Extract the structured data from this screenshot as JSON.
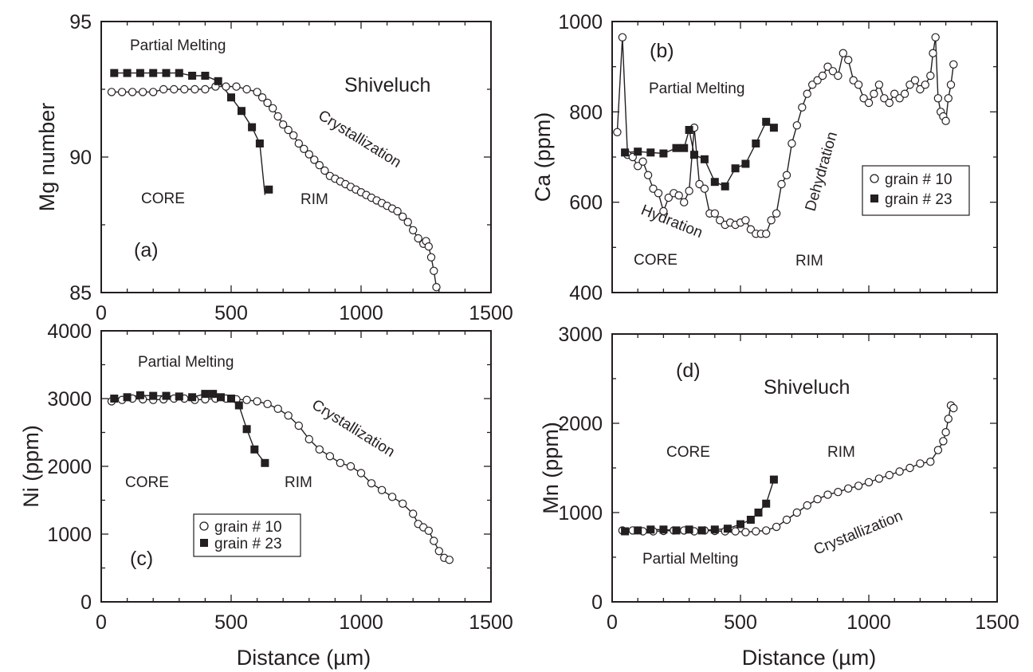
{
  "figure": {
    "xlabel": "Distance  (µm)",
    "legend": {
      "grain10": "grain # 10",
      "grain23": "grain # 23"
    }
  },
  "chart_data": [
    {
      "id": "a",
      "type": "scatter",
      "panel_label": "(a)",
      "ylabel": "Mg number",
      "xlim": [
        0,
        1500
      ],
      "ylim": [
        85,
        95
      ],
      "xticks": [
        0,
        500,
        1000,
        1500
      ],
      "yticks": [
        85,
        90,
        95
      ],
      "grid": false,
      "legend": "none",
      "annotations": [
        "Partial Melting",
        "Shiveluch",
        "Crystallization",
        "CORE",
        "RIM"
      ],
      "series": [
        {
          "name": "grain # 10",
          "marker": "open-circle",
          "x": [
            40,
            80,
            120,
            160,
            200,
            240,
            280,
            320,
            360,
            400,
            440,
            480,
            520,
            560,
            600,
            620,
            640,
            660,
            680,
            700,
            720,
            740,
            760,
            780,
            800,
            820,
            840,
            860,
            880,
            900,
            920,
            940,
            960,
            980,
            1000,
            1020,
            1040,
            1060,
            1080,
            1100,
            1120,
            1140,
            1160,
            1180,
            1200,
            1220,
            1240,
            1250,
            1260,
            1270,
            1280,
            1290
          ],
          "y": [
            92.4,
            92.4,
            92.4,
            92.4,
            92.4,
            92.5,
            92.5,
            92.5,
            92.5,
            92.5,
            92.6,
            92.6,
            92.6,
            92.5,
            92.4,
            92.2,
            92.0,
            91.8,
            91.5,
            91.2,
            91.0,
            90.8,
            90.5,
            90.3,
            90.1,
            89.9,
            89.7,
            89.5,
            89.3,
            89.2,
            89.1,
            89.0,
            88.9,
            88.8,
            88.7,
            88.6,
            88.5,
            88.4,
            88.3,
            88.2,
            88.1,
            88.0,
            87.8,
            87.6,
            87.3,
            87.0,
            86.8,
            86.9,
            86.7,
            86.3,
            85.8,
            85.2
          ]
        },
        {
          "name": "grain # 23",
          "marker": "filled-square",
          "x": [
            50,
            100,
            150,
            200,
            250,
            300,
            350,
            400,
            450,
            500,
            540,
            580,
            610,
            645
          ],
          "y": [
            93.1,
            93.1,
            93.1,
            93.1,
            93.1,
            93.1,
            93.0,
            93.0,
            92.8,
            92.2,
            91.7,
            91.1,
            90.5,
            88.8
          ],
          "line_x": [
            50,
            100,
            150,
            200,
            250,
            300,
            350,
            400,
            450,
            500,
            540,
            580,
            610,
            630
          ],
          "line_y": [
            93.1,
            93.1,
            93.1,
            93.1,
            93.1,
            93.1,
            93.0,
            93.0,
            92.8,
            92.2,
            91.7,
            91.1,
            90.5,
            88.6
          ]
        }
      ]
    },
    {
      "id": "b",
      "type": "line",
      "panel_label": "(b)",
      "ylabel": "Ca (ppm)",
      "xlim": [
        0,
        1500
      ],
      "ylim": [
        400,
        1000
      ],
      "xticks": [],
      "yticks": [
        400,
        600,
        800,
        1000
      ],
      "grid": false,
      "legend": "right",
      "annotations": [
        "Partial Melting",
        "Hydration",
        "Dehydration",
        "CORE",
        "RIM"
      ],
      "series": [
        {
          "name": "grain # 10",
          "marker": "open-circle",
          "x": [
            20,
            40,
            60,
            80,
            100,
            120,
            140,
            160,
            180,
            200,
            220,
            240,
            260,
            280,
            300,
            320,
            340,
            360,
            380,
            400,
            420,
            440,
            460,
            480,
            500,
            520,
            540,
            560,
            580,
            600,
            620,
            640,
            660,
            680,
            700,
            720,
            740,
            760,
            780,
            800,
            820,
            840,
            860,
            880,
            900,
            920,
            940,
            960,
            980,
            1000,
            1020,
            1040,
            1060,
            1080,
            1100,
            1120,
            1140,
            1160,
            1180,
            1200,
            1220,
            1240,
            1250,
            1260,
            1270,
            1280,
            1290,
            1300,
            1310,
            1320,
            1330
          ],
          "y": [
            755,
            965,
            705,
            700,
            680,
            690,
            660,
            630,
            620,
            580,
            610,
            620,
            615,
            600,
            625,
            765,
            640,
            630,
            575,
            575,
            560,
            550,
            555,
            550,
            555,
            560,
            540,
            530,
            530,
            530,
            560,
            575,
            640,
            660,
            730,
            770,
            810,
            840,
            860,
            870,
            880,
            900,
            890,
            880,
            930,
            915,
            870,
            860,
            830,
            820,
            840,
            860,
            830,
            820,
            840,
            830,
            840,
            860,
            870,
            850,
            860,
            880,
            930,
            965,
            830,
            800,
            790,
            780,
            830,
            860,
            905
          ]
        },
        {
          "name": "grain # 23",
          "marker": "filled-square",
          "x": [
            50,
            100,
            150,
            200,
            250,
            280,
            300,
            320,
            360,
            400,
            440,
            480,
            520,
            560,
            600,
            630
          ],
          "y": [
            710,
            712,
            710,
            708,
            720,
            720,
            760,
            705,
            695,
            645,
            635,
            675,
            685,
            730,
            778,
            765
          ]
        }
      ]
    },
    {
      "id": "c",
      "type": "scatter",
      "panel_label": "(c)",
      "ylabel": "Ni (ppm)",
      "xlim": [
        0,
        1500
      ],
      "ylim": [
        0,
        4000
      ],
      "xticks": [
        0,
        500,
        1000,
        1500
      ],
      "yticks": [
        0,
        1000,
        2000,
        3000,
        4000
      ],
      "grid": false,
      "legend": "bottom-left",
      "annotations": [
        "Partial Melting",
        "Crystallization",
        "CORE",
        "RIM"
      ],
      "series": [
        {
          "name": "grain # 10",
          "marker": "open-circle",
          "x": [
            40,
            80,
            120,
            160,
            200,
            240,
            280,
            320,
            360,
            400,
            440,
            480,
            520,
            560,
            600,
            640,
            680,
            720,
            760,
            800,
            840,
            880,
            920,
            960,
            1000,
            1040,
            1080,
            1120,
            1160,
            1200,
            1220,
            1240,
            1260,
            1280,
            1300,
            1320,
            1340
          ],
          "y": [
            2960,
            2980,
            3000,
            2990,
            2980,
            2990,
            3000,
            3000,
            2980,
            2990,
            3000,
            3000,
            2990,
            2980,
            2960,
            2920,
            2850,
            2750,
            2600,
            2400,
            2250,
            2150,
            2050,
            2000,
            1900,
            1750,
            1650,
            1550,
            1450,
            1300,
            1150,
            1100,
            1050,
            900,
            750,
            650,
            620
          ]
        },
        {
          "name": "grain # 23",
          "marker": "filled-square",
          "x": [
            50,
            100,
            150,
            200,
            250,
            300,
            350,
            400,
            430,
            460,
            500,
            530,
            560,
            590,
            630
          ],
          "y": [
            3000,
            3020,
            3050,
            3040,
            3040,
            3030,
            3020,
            3070,
            3070,
            3020,
            3000,
            2900,
            2550,
            2250,
            2050
          ]
        }
      ]
    },
    {
      "id": "d",
      "type": "scatter",
      "panel_label": "(d)",
      "ylabel": "Mn (ppm)",
      "xlim": [
        0,
        1500
      ],
      "ylim": [
        0,
        3000
      ],
      "xticks": [
        0,
        500,
        1000,
        1500
      ],
      "yticks": [
        0,
        1000,
        2000,
        3000
      ],
      "grid": false,
      "legend": "none",
      "annotations": [
        "Shiveluch",
        "CORE",
        "RIM",
        "Crystallization",
        "Partial Melting"
      ],
      "series": [
        {
          "name": "grain # 10",
          "marker": "open-circle",
          "x": [
            40,
            80,
            120,
            160,
            200,
            240,
            280,
            320,
            360,
            400,
            440,
            480,
            520,
            560,
            600,
            640,
            680,
            720,
            760,
            800,
            840,
            880,
            920,
            960,
            1000,
            1040,
            1080,
            1120,
            1160,
            1200,
            1240,
            1270,
            1290,
            1300,
            1310,
            1320,
            1330
          ],
          "y": [
            800,
            800,
            790,
            790,
            795,
            800,
            800,
            790,
            800,
            795,
            790,
            790,
            780,
            790,
            800,
            840,
            920,
            1000,
            1080,
            1150,
            1200,
            1230,
            1270,
            1300,
            1340,
            1380,
            1420,
            1460,
            1500,
            1550,
            1570,
            1700,
            1800,
            1900,
            2050,
            2200,
            2170
          ]
        },
        {
          "name": "grain # 23",
          "marker": "filled-square",
          "x": [
            50,
            100,
            150,
            200,
            250,
            300,
            350,
            400,
            450,
            500,
            540,
            570,
            600,
            630
          ],
          "y": [
            790,
            800,
            810,
            810,
            800,
            810,
            800,
            810,
            820,
            870,
            920,
            1000,
            1100,
            1370
          ]
        }
      ]
    }
  ]
}
